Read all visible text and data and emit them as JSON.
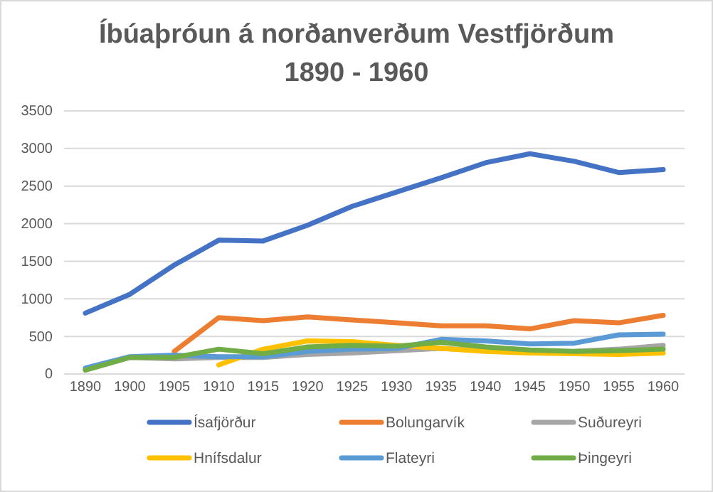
{
  "chart_data": {
    "type": "line",
    "title": "Íbúaþróun á norðanverðum  Vestfjörðum\n1890 - 1960",
    "categories": [
      "1890",
      "1900",
      "1905",
      "1910",
      "1915",
      "1920",
      "1925",
      "1930",
      "1935",
      "1940",
      "1945",
      "1950",
      "1955",
      "1960"
    ],
    "ylim": [
      0,
      3500
    ],
    "yticks": [
      0,
      500,
      1000,
      1500,
      2000,
      2500,
      3000,
      3500
    ],
    "grid": "y",
    "legend": "bottom",
    "marker": "none",
    "series": [
      {
        "name": "Ísafjörður",
        "color": "#4472c4",
        "values": [
          810,
          1060,
          1450,
          1780,
          1770,
          1980,
          2230,
          2420,
          2610,
          2810,
          2930,
          2830,
          2680,
          2720
        ]
      },
      {
        "name": "Bolungarvík",
        "color": "#ed7d31",
        "values": [
          null,
          null,
          300,
          750,
          710,
          760,
          720,
          680,
          640,
          640,
          600,
          710,
          680,
          780
        ]
      },
      {
        "name": "Suðureyri",
        "color": "#a5a5a5",
        "values": [
          60,
          220,
          200,
          220,
          220,
          260,
          280,
          310,
          340,
          310,
          290,
          300,
          330,
          380
        ]
      },
      {
        "name": "Hnífsdalur",
        "color": "#ffc000",
        "values": [
          null,
          null,
          null,
          120,
          330,
          440,
          430,
          380,
          340,
          300,
          280,
          270,
          260,
          280
        ]
      },
      {
        "name": "Flateyri",
        "color": "#5b9bd5",
        "values": [
          80,
          230,
          250,
          230,
          230,
          300,
          330,
          340,
          460,
          440,
          400,
          410,
          520,
          530
        ]
      },
      {
        "name": "Þingeyri",
        "color": "#70ad47",
        "values": [
          50,
          220,
          220,
          330,
          270,
          360,
          380,
          370,
          420,
          360,
          320,
          300,
          310,
          330
        ]
      }
    ]
  }
}
